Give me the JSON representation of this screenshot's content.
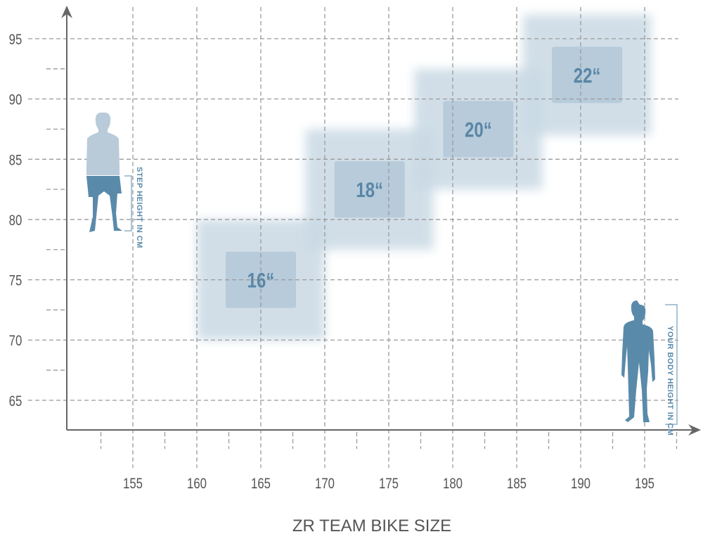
{
  "chart_data": {
    "type": "table",
    "title": "",
    "xlabel": "ZR TEAM BIKE SIZE",
    "ylabel": "",
    "x_unit_label": "YOUR BODY HEIGHT IN CM",
    "y_unit_label": "STEP HEIGHT IN CM",
    "xlim": [
      150,
      199
    ],
    "ylim": [
      62,
      99
    ],
    "x_ticks": [
      155,
      160,
      165,
      170,
      175,
      180,
      185,
      190,
      195
    ],
    "y_ticks": [
      65,
      70,
      75,
      80,
      85,
      90,
      95
    ],
    "grid": true,
    "sizes": [
      {
        "label": "16“",
        "body_height": [
          160,
          170
        ],
        "step_height": [
          70,
          80
        ]
      },
      {
        "label": "18“",
        "body_height": [
          168.5,
          178.5
        ],
        "step_height": [
          77.5,
          87.5
        ]
      },
      {
        "label": "20“",
        "body_height": [
          177,
          187
        ],
        "step_height": [
          82.5,
          92.5
        ]
      },
      {
        "label": "22“",
        "body_height": [
          185.5,
          195.5
        ],
        "step_height": [
          87,
          97
        ]
      }
    ],
    "colors": {
      "box_glow": "#c9d9e4",
      "box_inner": "#b7cbda",
      "label": "#5a86a6",
      "figure_light": "#b9cbd9",
      "figure_dark": "#5a8aaa",
      "axis": "#666666",
      "grid": "#9a9a9a"
    }
  }
}
